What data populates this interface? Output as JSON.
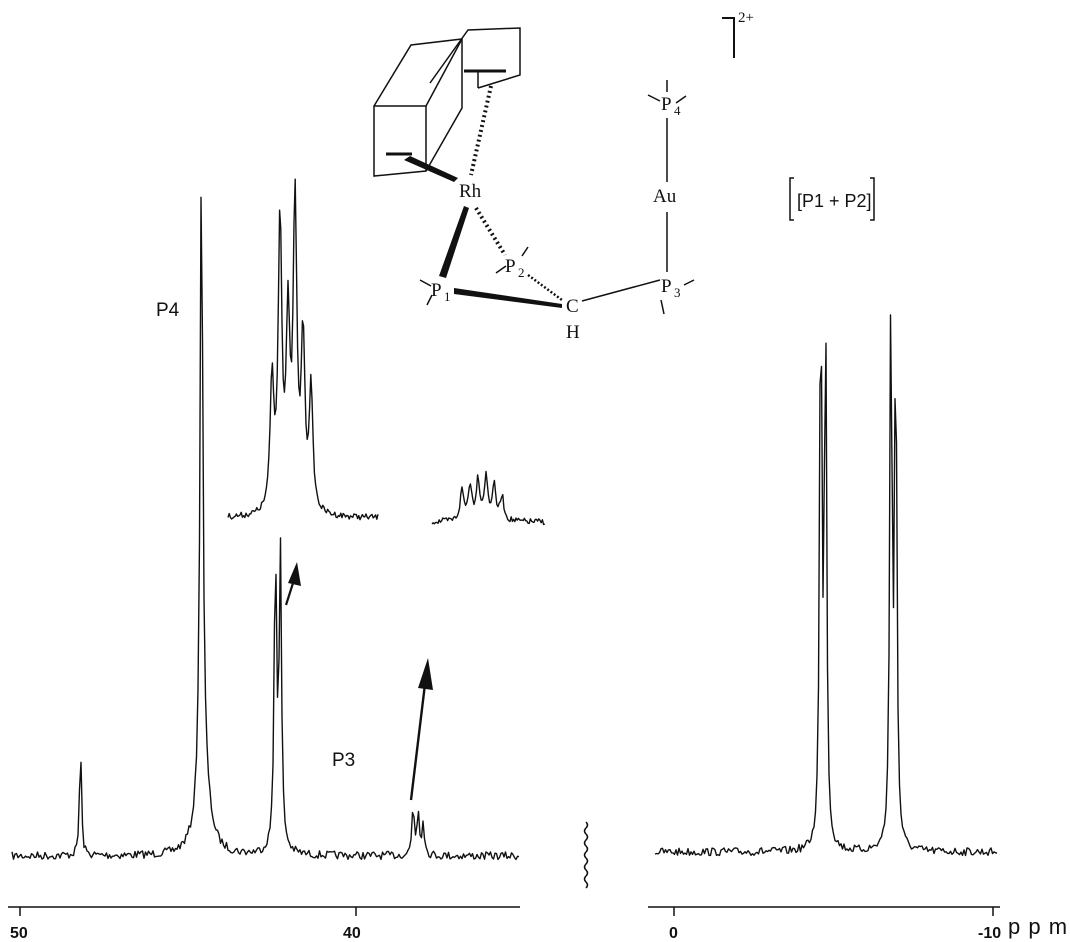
{
  "chart_data": {
    "type": "line",
    "title": "",
    "xlabel": "ppm",
    "xaxis_reversed": true,
    "panels": [
      {
        "name": "left",
        "xlim": [
          50,
          35
        ],
        "xticks": [
          "50",
          "40"
        ],
        "peaks_ppm": [
          48.2,
          44.6,
          42.4,
          42.25,
          38.3,
          38.15,
          38.0
        ],
        "peak_labels": [
          {
            "text": "P4",
            "ppm": 44.6
          },
          {
            "text": "P3",
            "ppm": 38.1
          }
        ]
      },
      {
        "name": "right",
        "xlim": [
          0,
          -10
        ],
        "xticks": [
          "0",
          "-10"
        ],
        "peaks_ppm": [
          -4.6,
          -4.75,
          -6.8,
          -6.95
        ],
        "peak_labels": [
          {
            "text": "[P1 + P2]",
            "ppm": -5.7
          }
        ]
      }
    ],
    "insets": [
      {
        "name": "expansion-P4-region",
        "peaks": 6
      },
      {
        "name": "expansion-P3-region",
        "peaks": 6
      }
    ]
  },
  "labels": {
    "p4": "P4",
    "p3": "P3",
    "p1p2": "[P1 + P2]",
    "charge": "2+",
    "rh": "Rh",
    "au": "Au",
    "c": "C",
    "h": "H",
    "p_letter": "P",
    "sub1": "1",
    "sub2": "2",
    "sub3": "3",
    "sub4": "4",
    "tick50": "50",
    "tick40": "40",
    "tick0": "0",
    "tickm10": "-10",
    "unit": "p p m"
  }
}
